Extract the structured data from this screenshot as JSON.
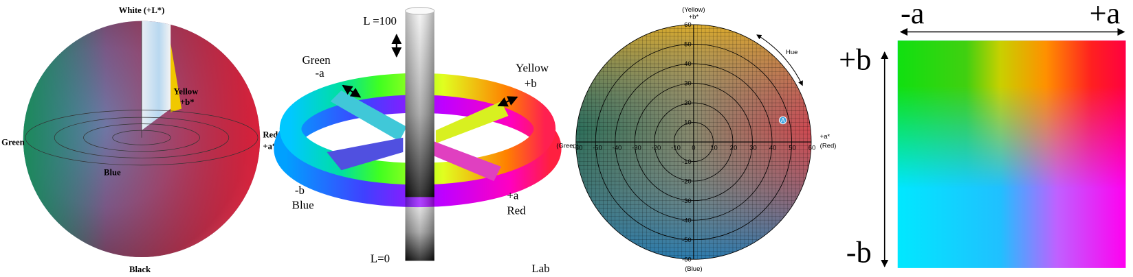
{
  "sphere": {
    "top": "White (+L*)",
    "yellow": "Yellow",
    "plus_b": "+b*",
    "green": "Green",
    "red": "Red",
    "plus_a": "+a*",
    "blue": "Blue",
    "bottom": "Black"
  },
  "ring": {
    "top": "L =100",
    "green": "Green",
    "minus_a": "-a",
    "yellow": "Yellow",
    "plus_b": "+b",
    "minus_b": "-b",
    "blue": "Blue",
    "plus_a": "+a",
    "red": "Red",
    "bottom": "L=0",
    "caption": "Lab"
  },
  "plane": {
    "yellow": "(Yellow)",
    "b_axis": "+b*",
    "hue": "Hue",
    "green": "(Green)",
    "a_axis": "+a*",
    "red": "(Red)",
    "blue": "(Blue)",
    "point": "A",
    "xticks": [
      -60,
      -50,
      -40,
      -30,
      -20,
      -10,
      0,
      10,
      20,
      30,
      40,
      50,
      60
    ],
    "yticks": [
      60,
      50,
      40,
      30,
      20,
      10,
      0,
      -10,
      -20,
      -30,
      -40,
      -50,
      -60
    ]
  },
  "square": {
    "minus_a": "-a",
    "plus_a": "+a",
    "plus_b": "+b",
    "minus_b": "-b"
  }
}
